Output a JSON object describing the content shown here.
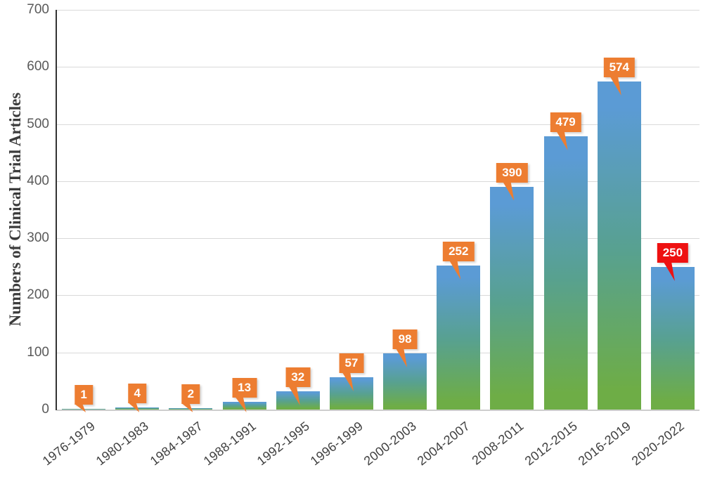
{
  "chart_data": {
    "type": "bar",
    "title": "",
    "categories": [
      "1976-1979",
      "1980-1983",
      "1984-1987",
      "1988-1991",
      "1992-1995",
      "1996-1999",
      "2000-2003",
      "2004-2007",
      "2008-2011",
      "2012-2015",
      "2016-2019",
      "2020-2022"
    ],
    "values": [
      1,
      4,
      2,
      13,
      32,
      57,
      98,
      252,
      390,
      479,
      574,
      250
    ],
    "data_labels": [
      "1",
      "4",
      "2",
      "13",
      "32",
      "57",
      "98",
      "252",
      "390",
      "479",
      "574",
      "250"
    ],
    "xlabel": "",
    "ylabel": "Numbers of Clinical Trial Articles",
    "ylim": [
      0,
      700
    ],
    "yticks": [
      "0",
      "100",
      "200",
      "300",
      "400",
      "500",
      "600",
      "700"
    ],
    "grid": true,
    "legend": false,
    "style": {
      "bar_gradient_top": "#5B9BD5",
      "bar_gradient_bottom": "#6EAD46",
      "callout_color": "#ED7D31",
      "callout_highlight_color": "#EE1111",
      "callout_highlight_index": 11,
      "callout_text_color": "#FFFFFF",
      "gridline_color": "#D9D9D9",
      "y_axis_color": "#333333",
      "tick_text_color": "#595959"
    }
  }
}
